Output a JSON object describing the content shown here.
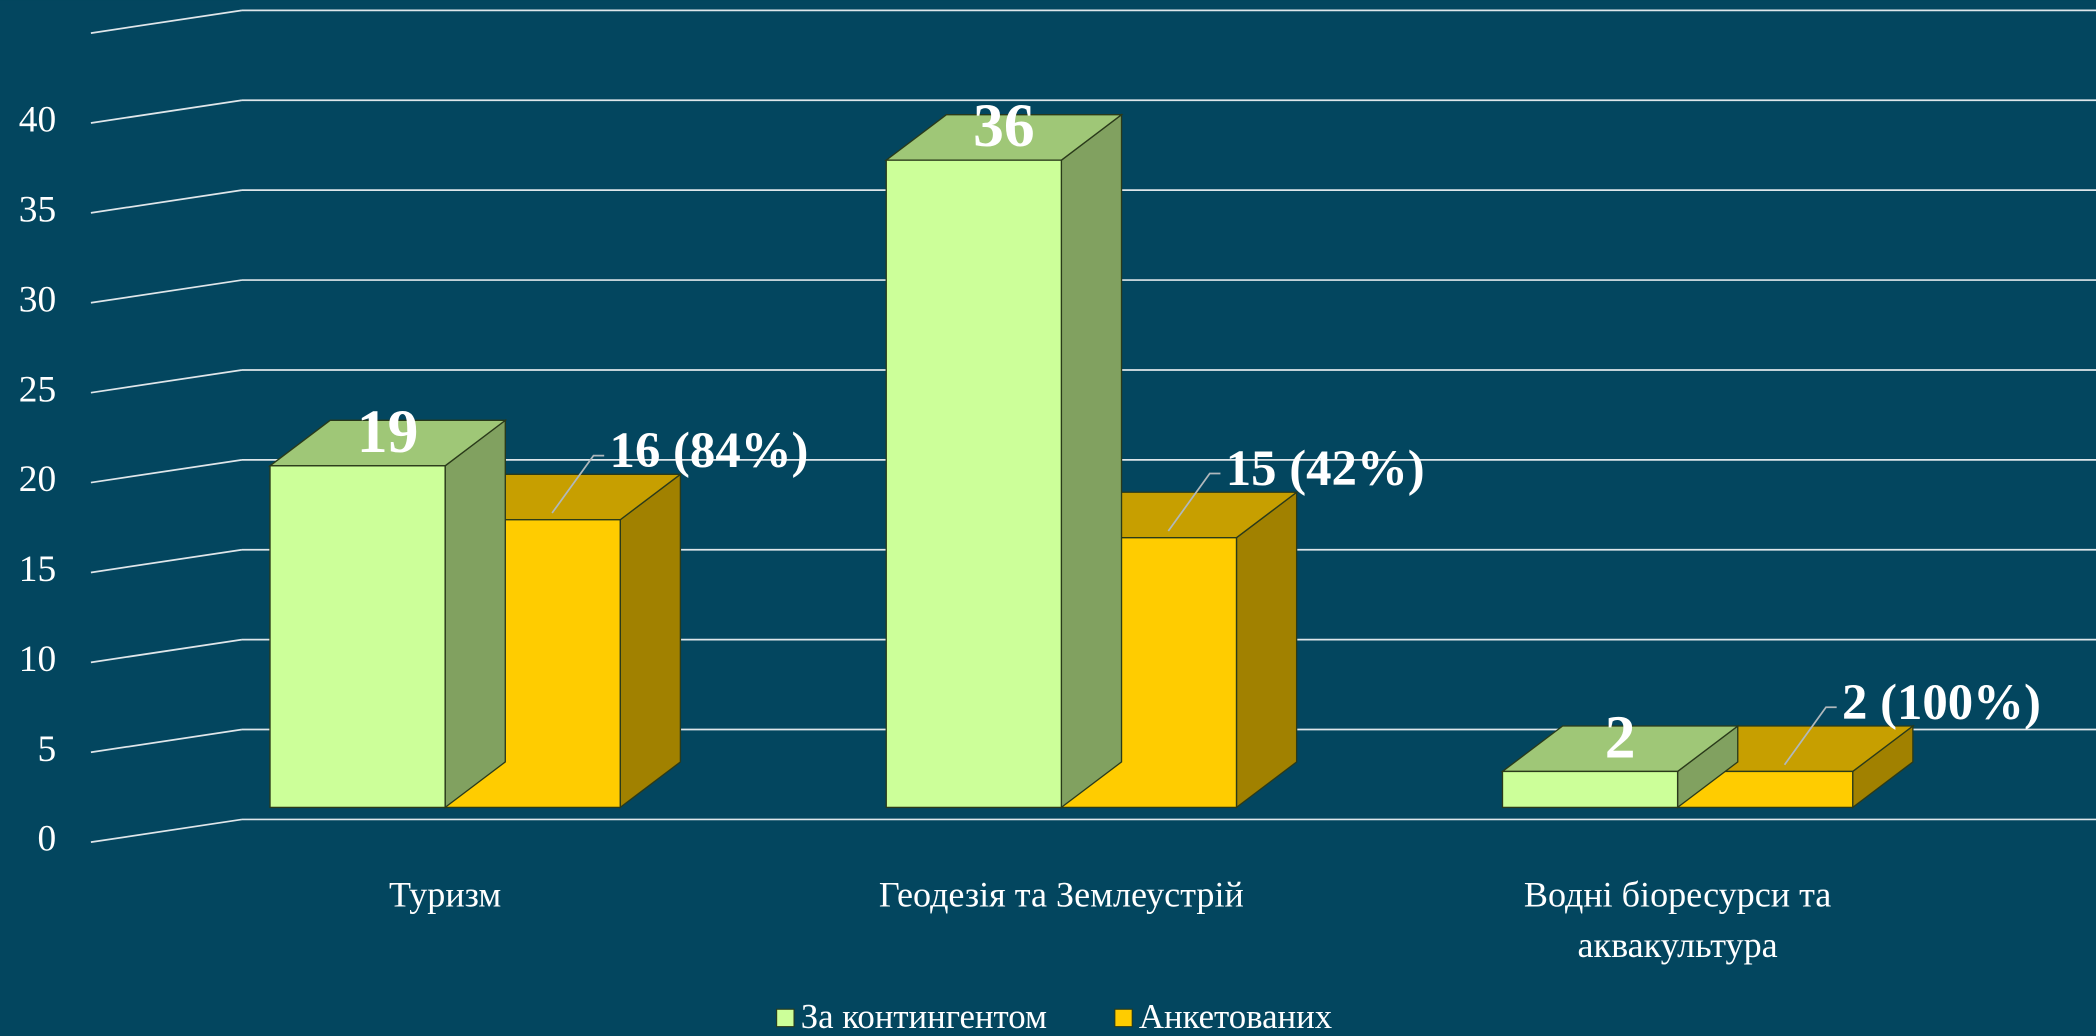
{
  "chart_data": {
    "type": "bar3d",
    "categories": [
      "Туризм",
      "Геодезія та Землеустрій",
      "Водні біоресурси та аквакультура"
    ],
    "series": [
      {
        "name": "За контингентом",
        "color": "#ccff99",
        "values": [
          19,
          36,
          2
        ]
      },
      {
        "name": "Анкетованих",
        "color": "#ffcc00",
        "values": [
          16,
          15,
          2
        ],
        "value_labels": [
          "16 (84%)",
          "15 (42%)",
          "2 (100%)"
        ]
      }
    ],
    "ylim": [
      0,
      45
    ],
    "yticks": [
      0,
      5,
      10,
      15,
      20,
      25,
      30,
      35,
      40
    ],
    "grid": true,
    "legend": "bottom"
  }
}
